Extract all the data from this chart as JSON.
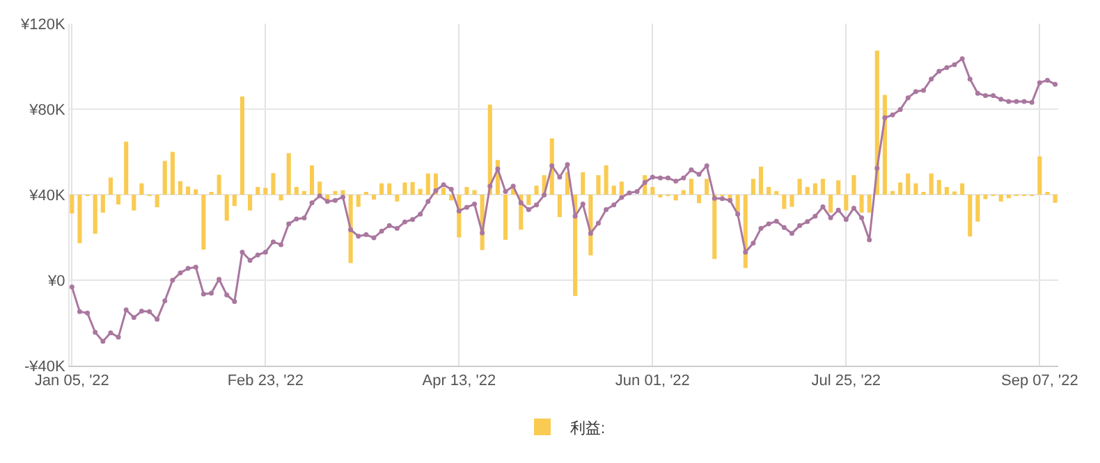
{
  "chart_data": {
    "type": "line",
    "categories": [
      "Jan 05, '22",
      null,
      null,
      null,
      null,
      null,
      null,
      null,
      null,
      null,
      null,
      null,
      null,
      null,
      null,
      null,
      null,
      null,
      null,
      null,
      null,
      null,
      null,
      null,
      null,
      "Feb 23, '22",
      null,
      null,
      null,
      null,
      null,
      null,
      null,
      null,
      null,
      null,
      null,
      null,
      null,
      null,
      null,
      null,
      null,
      null,
      null,
      null,
      null,
      null,
      null,
      null,
      "Apr 13, '22",
      null,
      null,
      null,
      null,
      null,
      null,
      null,
      null,
      null,
      null,
      null,
      null,
      null,
      null,
      null,
      null,
      null,
      null,
      null,
      null,
      null,
      null,
      null,
      null,
      "Jun 01, '22",
      null,
      null,
      null,
      null,
      null,
      null,
      null,
      null,
      null,
      null,
      null,
      null,
      null,
      null,
      null,
      null,
      null,
      null,
      null,
      null,
      null,
      null,
      null,
      null,
      "Jul 25, '22",
      null,
      null,
      null,
      null,
      null,
      null,
      null,
      null,
      null,
      null,
      null,
      null,
      null,
      null,
      null,
      null,
      null,
      null,
      null,
      null,
      null,
      null,
      null,
      null,
      "Sep 07, '22",
      null,
      null
    ],
    "series": [
      {
        "name": "利益:",
        "type": "bar",
        "color": "#f9cb52",
        "base": [
          40000,
          40000,
          40000,
          40000,
          40000,
          40000,
          40000,
          40000,
          40000,
          40000,
          40000,
          40000,
          40000,
          40000,
          40000,
          40000,
          40000,
          40000,
          40000,
          40000,
          40000,
          40000,
          40000,
          40000,
          40000,
          40000,
          40000,
          40000,
          40000,
          40000,
          40000,
          40000,
          40000,
          40000,
          40000,
          40000,
          40000,
          40000,
          40000,
          40000,
          40000,
          40000,
          40000,
          40000,
          40000,
          40000,
          40000,
          40000,
          40000,
          40000,
          40000,
          40000,
          40000,
          40000,
          40000,
          40000,
          40000,
          40000,
          40000,
          40000,
          40000,
          40000,
          40000,
          40000,
          40000,
          40000,
          40000,
          40000,
          40000,
          40000,
          40000,
          40000,
          null,
          null,
          40000,
          40000,
          40000,
          40000,
          40000,
          40000,
          40000,
          40000,
          40000,
          40000,
          40000,
          40000,
          40000,
          40000,
          40000,
          40000,
          40000,
          40000,
          40000,
          40000,
          40000,
          40000,
          40000,
          40000,
          40000,
          40000,
          40000,
          40000,
          40000,
          40000,
          40000,
          40000,
          40000,
          40000,
          40000,
          40000,
          40000,
          40000,
          40000,
          40000,
          40000,
          40000,
          40000,
          40000,
          40000,
          40000,
          40000,
          40000,
          40000,
          40000,
          40000,
          40000,
          40000,
          40000
        ],
        "values": [
          -8800,
          -22700,
          -500,
          -18300,
          -8400,
          8000,
          -4600,
          24800,
          -7400,
          5300,
          -500,
          -5900,
          15800,
          20000,
          6300,
          3800,
          2500,
          -25700,
          1100,
          9300,
          -12200,
          -5300,
          45900,
          -7400,
          3600,
          3200,
          10100,
          -2700,
          19400,
          3600,
          1700,
          13700,
          6100,
          -3200,
          1700,
          2100,
          -32000,
          -5700,
          1100,
          -2300,
          5300,
          5300,
          -3200,
          5700,
          5900,
          2700,
          9900,
          9900,
          3200,
          -2700,
          -20000,
          3600,
          2100,
          -25900,
          42100,
          16200,
          -21100,
          4200,
          -16400,
          -4800,
          4200,
          9100,
          26300,
          -10500,
          10500,
          -47400,
          10500,
          -28400,
          9100,
          13700,
          4200,
          6100,
          null,
          null,
          9100,
          3600,
          -1100,
          -200,
          -2700,
          2100,
          7400,
          -4000,
          7400,
          -30100,
          -500,
          -2100,
          -8400,
          -34300,
          7400,
          13100,
          3600,
          1700,
          -6700,
          -5700,
          7400,
          3600,
          5300,
          7400,
          -8400,
          6700,
          -7400,
          9100,
          -8400,
          -8400,
          67400,
          46700,
          1700,
          5700,
          9900,
          5300,
          1100,
          9900,
          6900,
          3600,
          1500,
          5300,
          -19600,
          -12600,
          -2100,
          -300,
          -3200,
          -1700,
          -300,
          -300,
          -400,
          17900,
          1100,
          -3800
        ]
      },
      {
        "color": "#a9779f",
        "values": [
          -3200,
          -14700,
          -15400,
          -24400,
          -28600,
          -24600,
          -26700,
          -13900,
          -17500,
          -14500,
          -14700,
          -18300,
          -9700,
          0,
          3400,
          5500,
          6100,
          -6500,
          -6100,
          400,
          -6900,
          -10000,
          13100,
          9300,
          11800,
          13100,
          17900,
          16600,
          26300,
          28600,
          29100,
          36200,
          39400,
          36800,
          37300,
          38900,
          23600,
          20600,
          21300,
          19800,
          22900,
          25500,
          24200,
          27200,
          28400,
          30900,
          36800,
          41900,
          44600,
          42500,
          32400,
          34100,
          35600,
          22100,
          44000,
          52000,
          41500,
          44000,
          36200,
          33000,
          35200,
          39800,
          53500,
          48200,
          54100,
          29900,
          35600,
          21900,
          26700,
          33000,
          35200,
          38700,
          40800,
          41500,
          45700,
          48200,
          47800,
          47800,
          46300,
          47800,
          51600,
          49500,
          53500,
          38300,
          38100,
          37300,
          30900,
          13100,
          17300,
          24200,
          26300,
          27600,
          24600,
          21900,
          25500,
          27400,
          29900,
          34300,
          29200,
          32800,
          28400,
          33700,
          29200,
          18900,
          52400,
          76000,
          77300,
          79800,
          85300,
          88200,
          88800,
          94100,
          97700,
          99400,
          100800,
          103600,
          94100,
          87400,
          86300,
          86300,
          84600,
          83600,
          83600,
          83600,
          83200,
          92400,
          93500,
          91600
        ]
      }
    ],
    "ylim": [
      -40000,
      120000
    ],
    "yticks": [
      {
        "value": -40000,
        "label": "-¥40K"
      },
      {
        "value": 0,
        "label": "¥0"
      },
      {
        "value": 40000,
        "label": "¥40K"
      },
      {
        "value": 80000,
        "label": "¥80K"
      },
      {
        "value": 120000,
        "label": "¥120K"
      }
    ],
    "grid": true,
    "legend": "bottom",
    "marker": "circle",
    "line_style": "solid"
  }
}
